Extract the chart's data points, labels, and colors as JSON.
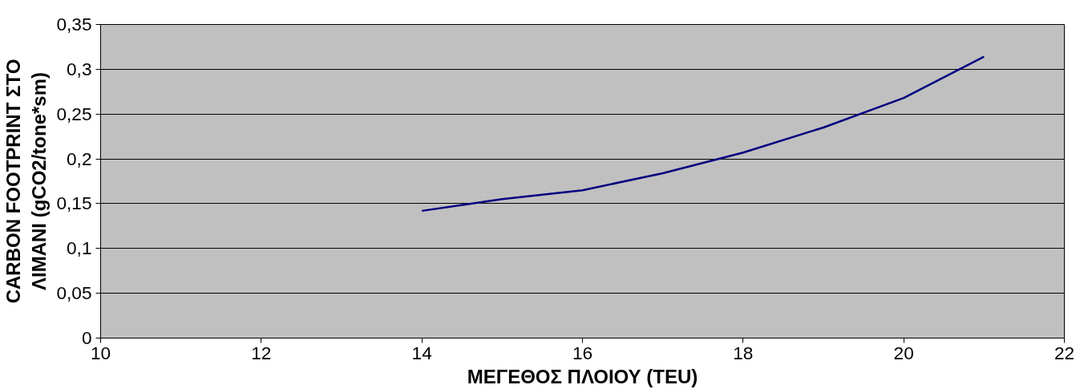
{
  "chart_data": {
    "type": "line",
    "xlabel": "ΜΕΓΕΘΟΣ ΠΛΟΙΟΥ (TEU)",
    "ylabel": "CARBON FOOTPRINT ΣΤΟ\nΛΙΜΑΝΙ (gCO2/tone*sm)",
    "x": [
      14,
      15,
      16,
      17,
      18,
      19,
      20,
      21
    ],
    "series": [
      {
        "color": "#000080",
        "values": [
          0.142,
          0.155,
          0.165,
          0.184,
          0.207,
          0.235,
          0.268,
          0.314
        ]
      }
    ],
    "xlim": [
      10,
      22
    ],
    "xticks": [
      10,
      12,
      14,
      16,
      18,
      20,
      22
    ],
    "ylim": [
      0,
      0.35
    ],
    "yticks": [
      {
        "value": 0,
        "label": "0"
      },
      {
        "value": 0.05,
        "label": "0,05"
      },
      {
        "value": 0.1,
        "label": "0,1"
      },
      {
        "value": 0.15,
        "label": "0,15"
      },
      {
        "value": 0.2,
        "label": "0,2"
      },
      {
        "value": 0.25,
        "label": "0,25"
      },
      {
        "value": 0.3,
        "label": "0,3"
      },
      {
        "value": 0.35,
        "label": "0,35"
      }
    ],
    "grid": "y",
    "marker": "none",
    "line_style": "solid"
  }
}
